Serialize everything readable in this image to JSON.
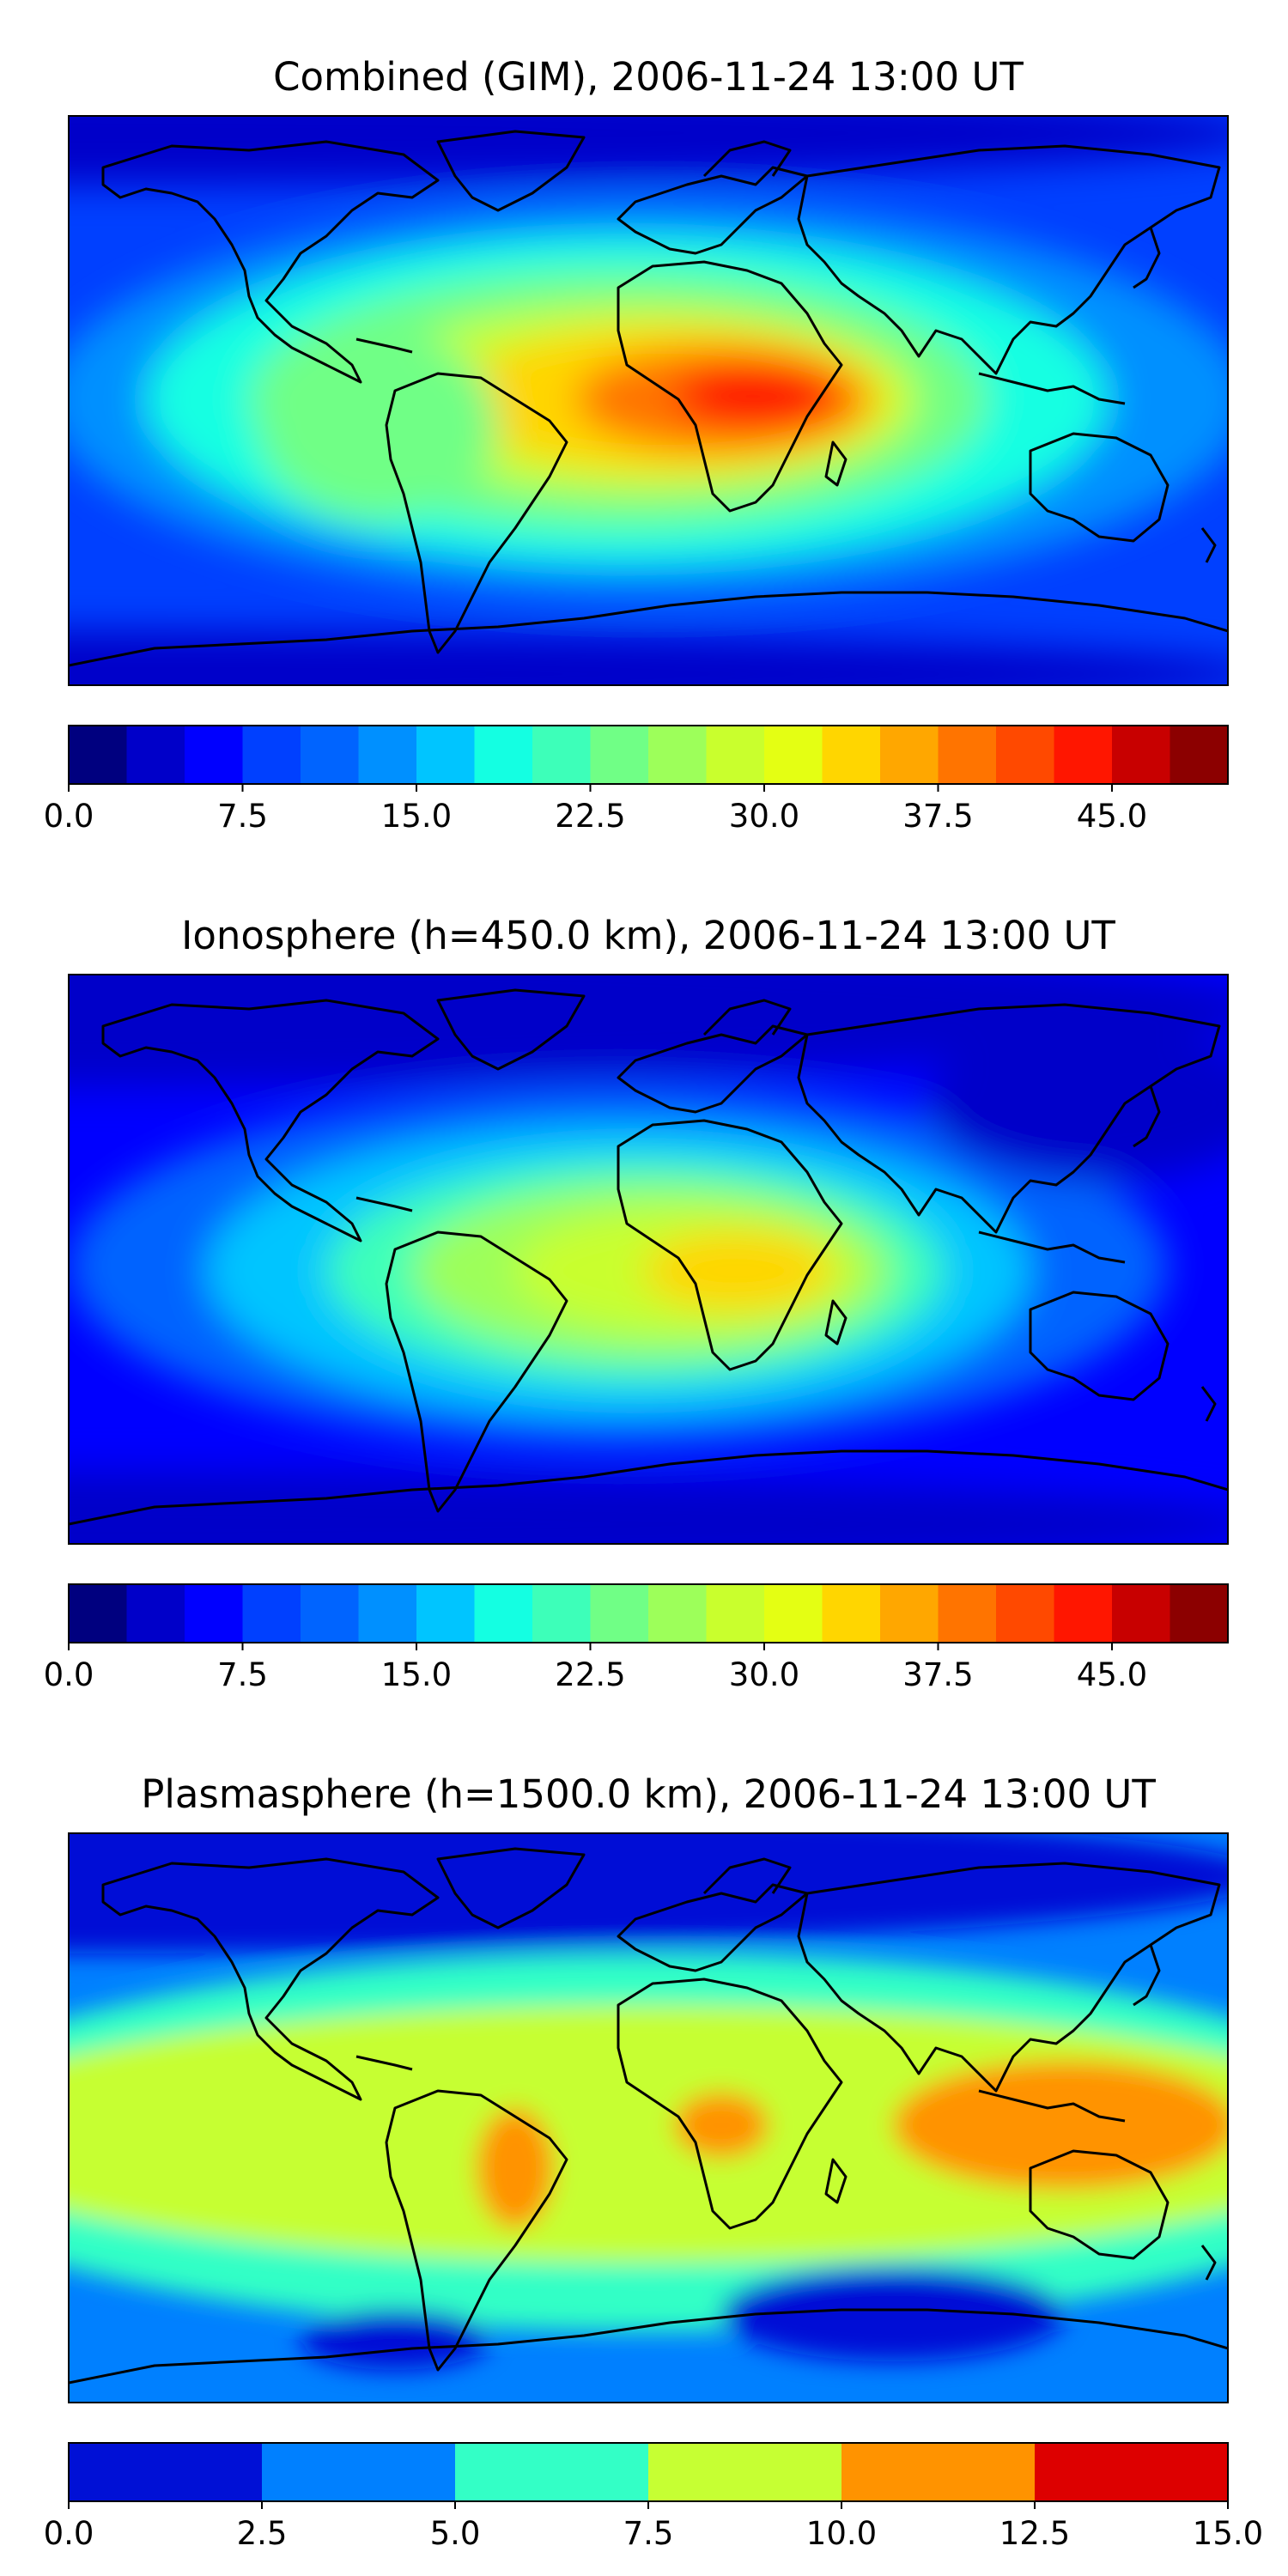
{
  "panels": [
    {
      "title": "Combined (GIM), 2006-11-24 13:00 UT",
      "colorbar": {
        "min": 0,
        "max": 50,
        "colors": [
          "#00007f",
          "#0000c9",
          "#0000ff",
          "#0040ff",
          "#0064ff",
          "#0090ff",
          "#00c5ff",
          "#14ffe2",
          "#3dffb9",
          "#70ff86",
          "#9dff5a",
          "#c9ff2d",
          "#e4ff13",
          "#ffd600",
          "#ffa700",
          "#ff7400",
          "#ff4900",
          "#ff1600",
          "#c80000",
          "#8c0000"
        ],
        "tick_labels": [
          "0.0",
          "7.5",
          "15.0",
          "22.5",
          "30.0",
          "37.5",
          "45.0"
        ],
        "tick_values": [
          0,
          7.5,
          15,
          22.5,
          30,
          37.5,
          45
        ]
      }
    },
    {
      "title": "Ionosphere  (h=450.0 km), 2006-11-24 13:00 UT",
      "colorbar": {
        "min": 0,
        "max": 50,
        "colors": [
          "#00007f",
          "#0000c9",
          "#0000ff",
          "#0040ff",
          "#0064ff",
          "#0090ff",
          "#00c5ff",
          "#14ffe2",
          "#3dffb9",
          "#70ff86",
          "#9dff5a",
          "#c9ff2d",
          "#e4ff13",
          "#ffd600",
          "#ffa700",
          "#ff7400",
          "#ff4900",
          "#ff1600",
          "#c80000",
          "#8c0000"
        ],
        "tick_labels": [
          "0.0",
          "7.5",
          "15.0",
          "22.5",
          "30.0",
          "37.5",
          "45.0"
        ],
        "tick_values": [
          0,
          7.5,
          15,
          22.5,
          30,
          37.5,
          45
        ]
      }
    },
    {
      "title": "Plasmasphere (h=1500.0 km), 2006-11-24 13:00 UT",
      "colorbar": {
        "min": 0,
        "max": 15,
        "colors": [
          "#0010d6",
          "#0080ff",
          "#33ffc6",
          "#c6ff33",
          "#ff9300",
          "#dd0000"
        ],
        "tick_labels": [
          "0.0",
          "2.5",
          "5.0",
          "7.5",
          "10.0",
          "12.5",
          "15.0"
        ],
        "tick_values": [
          0,
          2.5,
          5,
          7.5,
          10,
          12.5,
          15
        ]
      }
    }
  ],
  "chart_data": [
    {
      "type": "heatmap",
      "title": "Combined (GIM), 2006-11-24 13:00 UT",
      "xlabel": "",
      "ylabel": "",
      "value_range": [
        0,
        50
      ],
      "colorbar_ticks": [
        0,
        7.5,
        15,
        22.5,
        30,
        37.5,
        45
      ],
      "features": [
        {
          "region": "central Africa / equatorial Atlantic",
          "level": "maximum",
          "approx_value": 45
        },
        {
          "region": "South America equatorial anomaly",
          "level": "high",
          "approx_value": 30
        },
        {
          "region": "polar latitudes",
          "level": "minimum",
          "approx_value": 5
        }
      ]
    },
    {
      "type": "heatmap",
      "title": "Ionosphere  (h=450.0 km), 2006-11-24 13:00 UT",
      "xlabel": "",
      "ylabel": "",
      "value_range": [
        0,
        50
      ],
      "colorbar_ticks": [
        0,
        7.5,
        15,
        22.5,
        30,
        37.5,
        45
      ],
      "features": [
        {
          "region": "east Africa",
          "level": "maximum",
          "approx_value": 33
        },
        {
          "region": "west Africa / equatorial Atlantic",
          "level": "high",
          "approx_value": 28
        },
        {
          "region": "polar latitudes",
          "level": "minimum",
          "approx_value": 2
        }
      ]
    },
    {
      "type": "heatmap",
      "title": "Plasmasphere (h=1500.0 km), 2006-11-24 13:00 UT",
      "xlabel": "",
      "ylabel": "",
      "value_range": [
        0,
        15
      ],
      "colorbar_ticks": [
        0,
        2.5,
        5,
        7.5,
        10,
        12.5,
        15
      ],
      "features": [
        {
          "region": "Indonesia / Southeast Asia",
          "level": "maximum",
          "approx_value": 11
        },
        {
          "region": "eastern Brazil",
          "level": "maximum",
          "approx_value": 11
        },
        {
          "region": "equatorial belt",
          "level": "moderate",
          "approx_value": 8.5
        },
        {
          "region": "high latitudes",
          "level": "minimum",
          "approx_value": 1.5
        }
      ]
    }
  ]
}
